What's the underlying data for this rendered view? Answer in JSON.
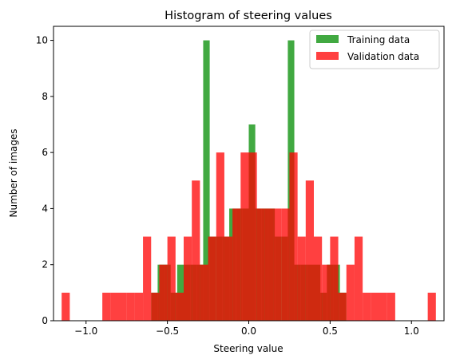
{
  "chart_data": {
    "type": "bar",
    "title": "Histogram of steering values",
    "xlabel": "Steering value",
    "ylabel": "Number of images",
    "xlim": [
      -1.2,
      1.2
    ],
    "ylim": [
      0,
      10.5
    ],
    "xticks": [
      -1.0,
      -0.5,
      0.0,
      0.5,
      1.0
    ],
    "xtick_labels": [
      "−1.0",
      "−0.5",
      "0.0",
      "0.5",
      "1.0"
    ],
    "yticks": [
      0,
      2,
      4,
      6,
      8,
      10
    ],
    "ytick_labels": [
      "0",
      "2",
      "4",
      "6",
      "8",
      "10"
    ],
    "grid": false,
    "legend_position": "top-right",
    "series": [
      {
        "name": "Training data",
        "color": "#2ca02c",
        "alpha": 0.9,
        "bins": [
          {
            "x0": -0.6,
            "x1": -0.56,
            "count": 1
          },
          {
            "x0": -0.56,
            "x1": -0.52,
            "count": 2
          },
          {
            "x0": -0.52,
            "x1": -0.48,
            "count": 2
          },
          {
            "x0": -0.48,
            "x1": -0.44,
            "count": 1
          },
          {
            "x0": -0.44,
            "x1": -0.4,
            "count": 2
          },
          {
            "x0": -0.4,
            "x1": -0.36,
            "count": 2
          },
          {
            "x0": -0.36,
            "x1": -0.32,
            "count": 2
          },
          {
            "x0": -0.32,
            "x1": -0.28,
            "count": 2
          },
          {
            "x0": -0.28,
            "x1": -0.24,
            "count": 10
          },
          {
            "x0": -0.24,
            "x1": -0.2,
            "count": 3
          },
          {
            "x0": -0.2,
            "x1": -0.16,
            "count": 3
          },
          {
            "x0": -0.16,
            "x1": -0.12,
            "count": 3
          },
          {
            "x0": -0.12,
            "x1": -0.08,
            "count": 4
          },
          {
            "x0": -0.08,
            "x1": -0.04,
            "count": 4
          },
          {
            "x0": -0.04,
            "x1": 0.0,
            "count": 4
          },
          {
            "x0": 0.0,
            "x1": 0.04,
            "count": 7
          },
          {
            "x0": 0.04,
            "x1": 0.08,
            "count": 4
          },
          {
            "x0": 0.08,
            "x1": 0.12,
            "count": 4
          },
          {
            "x0": 0.12,
            "x1": 0.16,
            "count": 4
          },
          {
            "x0": 0.16,
            "x1": 0.2,
            "count": 3
          },
          {
            "x0": 0.2,
            "x1": 0.24,
            "count": 3
          },
          {
            "x0": 0.24,
            "x1": 0.28,
            "count": 10
          },
          {
            "x0": 0.28,
            "x1": 0.32,
            "count": 2
          },
          {
            "x0": 0.32,
            "x1": 0.36,
            "count": 2
          },
          {
            "x0": 0.36,
            "x1": 0.4,
            "count": 2
          },
          {
            "x0": 0.4,
            "x1": 0.44,
            "count": 2
          },
          {
            "x0": 0.44,
            "x1": 0.48,
            "count": 1
          },
          {
            "x0": 0.48,
            "x1": 0.52,
            "count": 2
          },
          {
            "x0": 0.52,
            "x1": 0.56,
            "count": 2
          },
          {
            "x0": 0.56,
            "x1": 0.6,
            "count": 1
          }
        ]
      },
      {
        "name": "Validation data",
        "color": "#ff0000",
        "alpha": 0.75,
        "bins": [
          {
            "x0": -1.15,
            "x1": -1.1,
            "count": 1
          },
          {
            "x0": -0.9,
            "x1": -0.85,
            "count": 1
          },
          {
            "x0": -0.85,
            "x1": -0.8,
            "count": 1
          },
          {
            "x0": -0.8,
            "x1": -0.75,
            "count": 1
          },
          {
            "x0": -0.75,
            "x1": -0.7,
            "count": 1
          },
          {
            "x0": -0.7,
            "x1": -0.65,
            "count": 1
          },
          {
            "x0": -0.65,
            "x1": -0.6,
            "count": 3
          },
          {
            "x0": -0.6,
            "x1": -0.55,
            "count": 1
          },
          {
            "x0": -0.55,
            "x1": -0.5,
            "count": 2
          },
          {
            "x0": -0.5,
            "x1": -0.45,
            "count": 3
          },
          {
            "x0": -0.45,
            "x1": -0.4,
            "count": 1
          },
          {
            "x0": -0.4,
            "x1": -0.35,
            "count": 3
          },
          {
            "x0": -0.35,
            "x1": -0.3,
            "count": 5
          },
          {
            "x0": -0.3,
            "x1": -0.25,
            "count": 2
          },
          {
            "x0": -0.25,
            "x1": -0.2,
            "count": 3
          },
          {
            "x0": -0.2,
            "x1": -0.15,
            "count": 6
          },
          {
            "x0": -0.15,
            "x1": -0.1,
            "count": 3
          },
          {
            "x0": -0.1,
            "x1": -0.05,
            "count": 4
          },
          {
            "x0": -0.05,
            "x1": 0.0,
            "count": 6
          },
          {
            "x0": 0.0,
            "x1": 0.05,
            "count": 6
          },
          {
            "x0": 0.05,
            "x1": 0.1,
            "count": 4
          },
          {
            "x0": 0.1,
            "x1": 0.15,
            "count": 4
          },
          {
            "x0": 0.15,
            "x1": 0.2,
            "count": 4
          },
          {
            "x0": 0.2,
            "x1": 0.25,
            "count": 4
          },
          {
            "x0": 0.25,
            "x1": 0.3,
            "count": 6
          },
          {
            "x0": 0.3,
            "x1": 0.35,
            "count": 3
          },
          {
            "x0": 0.35,
            "x1": 0.4,
            "count": 5
          },
          {
            "x0": 0.4,
            "x1": 0.45,
            "count": 3
          },
          {
            "x0": 0.45,
            "x1": 0.5,
            "count": 2
          },
          {
            "x0": 0.5,
            "x1": 0.55,
            "count": 3
          },
          {
            "x0": 0.55,
            "x1": 0.6,
            "count": 1
          },
          {
            "x0": 0.6,
            "x1": 0.65,
            "count": 2
          },
          {
            "x0": 0.65,
            "x1": 0.7,
            "count": 3
          },
          {
            "x0": 0.7,
            "x1": 0.75,
            "count": 1
          },
          {
            "x0": 0.75,
            "x1": 0.8,
            "count": 1
          },
          {
            "x0": 0.8,
            "x1": 0.85,
            "count": 1
          },
          {
            "x0": 0.85,
            "x1": 0.9,
            "count": 1
          },
          {
            "x0": 1.1,
            "x1": 1.15,
            "count": 1
          }
        ]
      }
    ]
  }
}
